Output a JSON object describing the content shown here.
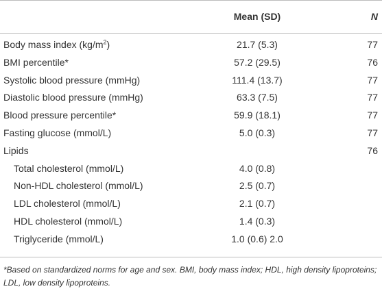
{
  "table": {
    "header": {
      "mean": "Mean (SD)",
      "n": "N"
    },
    "rows": [
      {
        "label": "Body mass index (kg/m",
        "label_sup": "2",
        "label_after": ")",
        "mean": "21.7 (5.3)",
        "n": "77"
      },
      {
        "label": "BMI percentile*",
        "mean": "57.2 (29.5)",
        "n": "76"
      },
      {
        "label": "Systolic blood pressure (mmHg)",
        "mean": "111.4 (13.7)",
        "n": "77"
      },
      {
        "label": "Diastolic blood pressure (mmHg)",
        "mean": "63.3 (7.5)",
        "n": "77"
      },
      {
        "label": "Blood pressure percentile*",
        "mean": "59.9 (18.1)",
        "n": "77"
      },
      {
        "label": "Fasting glucose (mmol/L)",
        "mean": "5.0 (0.3)",
        "n": "77"
      },
      {
        "label": "Lipids",
        "n": "76",
        "children": [
          {
            "label": "Total cholesterol (mmol/L)",
            "mean": "4.0 (0.8)"
          },
          {
            "label": "Non-HDL cholesterol (mmol/L)",
            "mean": "2.5 (0.7)"
          },
          {
            "label": "LDL cholesterol (mmol/L)",
            "mean": "2.1 (0.7)"
          },
          {
            "label": "HDL cholesterol (mmol/L)",
            "mean": "1.4 (0.3)"
          },
          {
            "label": "Triglyceride (mmol/L)",
            "mean": "1.0 (0.6) 2.0"
          }
        ]
      }
    ],
    "footnote": "*Based on standardized norms for age and sex. BMI, body mass index; HDL, high density lipoproteins; LDL, low density lipoproteins."
  }
}
